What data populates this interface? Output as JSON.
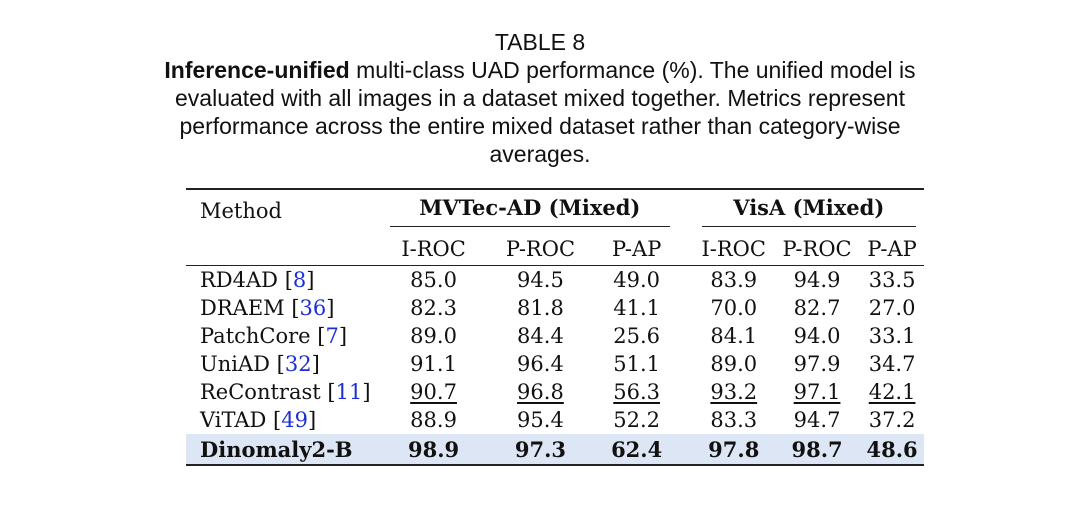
{
  "caption": {
    "label": "TABLE 8",
    "bold_lead": "Inference-unified",
    "text": " multi-class UAD performance (%). The unified model is evaluated with all images in a dataset mixed together. Metrics represent performance across the entire mixed dataset rather than category-wise averages."
  },
  "table": {
    "method_header": "Method",
    "groups": [
      "MVTec-AD (Mixed)",
      "VisA (Mixed)"
    ],
    "metrics": [
      "I-ROC",
      "P-ROC",
      "P-AP",
      "I-ROC",
      "P-ROC",
      "P-AP"
    ],
    "rows": [
      {
        "name": "RD4AD",
        "cite": "8",
        "values": [
          "85.0",
          "94.5",
          "49.0",
          "83.9",
          "94.9",
          "33.5"
        ]
      },
      {
        "name": "DRAEM",
        "cite": "36",
        "values": [
          "82.3",
          "81.8",
          "41.1",
          "70.0",
          "82.7",
          "27.0"
        ]
      },
      {
        "name": "PatchCore",
        "cite": "7",
        "values": [
          "89.0",
          "84.4",
          "25.6",
          "84.1",
          "94.0",
          "33.1"
        ]
      },
      {
        "name": "UniAD",
        "cite": "32",
        "values": [
          "91.1",
          "96.4",
          "51.1",
          "89.0",
          "97.9",
          "34.7"
        ]
      },
      {
        "name": "ReContrast",
        "cite": "11",
        "values": [
          "90.7",
          "96.8",
          "56.3",
          "93.2",
          "97.1",
          "42.1"
        ],
        "underlined": true
      },
      {
        "name": "ViTAD",
        "cite": "49",
        "values": [
          "88.9",
          "95.4",
          "52.2",
          "83.3",
          "94.7",
          "37.2"
        ]
      },
      {
        "name": "Dinomaly2-B",
        "values": [
          "98.9",
          "97.3",
          "62.4",
          "97.8",
          "98.7",
          "48.6"
        ],
        "bold": true,
        "highlight": "#dde6f4"
      }
    ]
  }
}
